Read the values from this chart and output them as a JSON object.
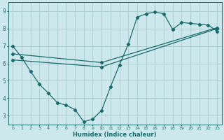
{
  "xlabel": "Humidex (Indice chaleur)",
  "bg_color": "#cce8ec",
  "grid_color": "#aacccc",
  "line_color": "#1a6b6b",
  "xlim": [
    -0.5,
    23.5
  ],
  "ylim": [
    2.5,
    9.5
  ],
  "xticks": [
    0,
    1,
    2,
    3,
    4,
    5,
    6,
    7,
    8,
    9,
    10,
    11,
    12,
    13,
    14,
    15,
    16,
    17,
    18,
    19,
    20,
    21,
    22,
    23
  ],
  "yticks": [
    3,
    4,
    5,
    6,
    7,
    8,
    9
  ],
  "line1_x": [
    0,
    10,
    23
  ],
  "line1_y": [
    6.2,
    5.8,
    8.0
  ],
  "line2_x": [
    0,
    10,
    23
  ],
  "line2_y": [
    6.55,
    6.05,
    8.05
  ],
  "line3_x": [
    0,
    1,
    2,
    3,
    4,
    5,
    6,
    7,
    8,
    9,
    10,
    11,
    12,
    13,
    14,
    15,
    16,
    17,
    18,
    19,
    20,
    21,
    22,
    23
  ],
  "line3_y": [
    7.0,
    6.35,
    5.55,
    4.8,
    4.3,
    3.75,
    3.6,
    3.35,
    2.65,
    2.8,
    3.3,
    4.65,
    5.9,
    7.1,
    8.65,
    8.85,
    8.95,
    8.85,
    7.95,
    8.35,
    8.3,
    8.25,
    8.2,
    7.85
  ]
}
